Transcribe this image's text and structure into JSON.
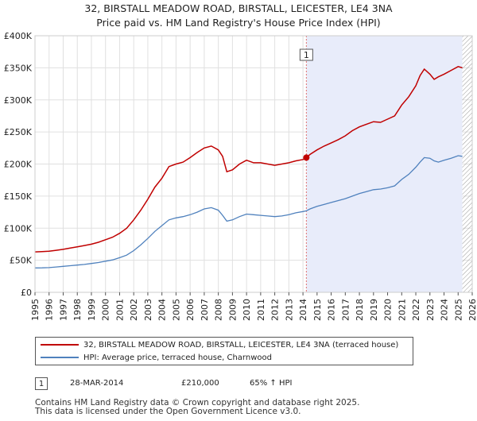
{
  "title": {
    "line1": "32, BIRSTALL MEADOW ROAD, BIRSTALL, LEICESTER, LE4 3NA",
    "line2": "Price paid vs. HM Land Registry's House Price Index (HPI)"
  },
  "colors": {
    "property": "#c00000",
    "hpi": "#4f81bd",
    "shade": "#e8ecfa",
    "marker_line": "#e07070",
    "grid": "#e0e0e0"
  },
  "legend": {
    "property_label": "32, BIRSTALL MEADOW ROAD, BIRSTALL, LEICESTER, LE4 3NA (terraced house)",
    "hpi_label": "HPI: Average price, terraced house, Charnwood"
  },
  "sale": {
    "badge": "1",
    "date": "28-MAR-2014",
    "price": "£210,000",
    "hpi_change": "65% ↑ HPI"
  },
  "footer": {
    "line1": "Contains HM Land Registry data © Crown copyright and database right 2025.",
    "line2": "This data is licensed under the Open Government Licence v3.0."
  },
  "chart_data": {
    "type": "line",
    "title": "Price paid vs. HM Land Registry's House Price Index (HPI)",
    "xlabel": "",
    "ylabel": "",
    "xlim": [
      1995,
      2026
    ],
    "ylim": [
      0,
      400000
    ],
    "grid": true,
    "x_ticks": [
      "1995",
      "1996",
      "1997",
      "1998",
      "1999",
      "2000",
      "2001",
      "2002",
      "2003",
      "2004",
      "2005",
      "2006",
      "2007",
      "2008",
      "2009",
      "2010",
      "2011",
      "2012",
      "2013",
      "2014",
      "2015",
      "2016",
      "2017",
      "2018",
      "2019",
      "2020",
      "2021",
      "2022",
      "2023",
      "2024",
      "2025",
      "2026"
    ],
    "y_ticks": [
      {
        "value": 0,
        "label": "£0"
      },
      {
        "value": 50000,
        "label": "£50K"
      },
      {
        "value": 100000,
        "label": "£100K"
      },
      {
        "value": 150000,
        "label": "£150K"
      },
      {
        "value": 200000,
        "label": "£200K"
      },
      {
        "value": 250000,
        "label": "£250K"
      },
      {
        "value": 300000,
        "label": "£300K"
      },
      {
        "value": 350000,
        "label": "£350K"
      },
      {
        "value": 400000,
        "label": "£400K"
      }
    ],
    "shaded_region": {
      "from": 2014.24,
      "to": 2025.3
    },
    "hatched_region_from": 2025.3,
    "annotation": {
      "label": "1",
      "x": 2014.24,
      "y": 210000
    },
    "series": [
      {
        "name": "32, BIRSTALL MEADOW ROAD, BIRSTALL, LEICESTER, LE4 3NA (terraced house)",
        "x": [
          1995,
          1995.5,
          1996,
          1996.5,
          1997,
          1997.5,
          1998,
          1998.5,
          1999,
          1999.5,
          2000,
          2000.5,
          2001,
          2001.5,
          2002,
          2002.5,
          2003,
          2003.5,
          2004,
          2004.5,
          2005,
          2005.5,
          2006,
          2006.5,
          2007,
          2007.5,
          2008,
          2008.3,
          2008.6,
          2009,
          2009.5,
          2010,
          2010.5,
          2011,
          2011.5,
          2012,
          2012.5,
          2013,
          2013.5,
          2014,
          2014.24,
          2014.5,
          2015,
          2015.5,
          2016,
          2016.5,
          2017,
          2017.5,
          2018,
          2018.5,
          2019,
          2019.5,
          2020,
          2020.5,
          2021,
          2021.5,
          2022,
          2022.3,
          2022.6,
          2023,
          2023.3,
          2023.6,
          2024,
          2024.5,
          2025,
          2025.3
        ],
        "values": [
          63000,
          63500,
          64000,
          65500,
          67000,
          69000,
          71000,
          73000,
          75000,
          78000,
          82000,
          86000,
          92000,
          100000,
          113000,
          128000,
          145000,
          164000,
          178000,
          196000,
          200000,
          203000,
          210000,
          218000,
          225000,
          228000,
          222000,
          212000,
          188000,
          191000,
          200000,
          206000,
          202000,
          202000,
          200000,
          198000,
          200000,
          202000,
          205000,
          207000,
          210000,
          215000,
          222000,
          228000,
          233000,
          238000,
          244000,
          252000,
          258000,
          262000,
          266000,
          265000,
          270000,
          275000,
          292000,
          305000,
          322000,
          338000,
          348000,
          340000,
          332000,
          336000,
          340000,
          346000,
          352000,
          350000
        ]
      },
      {
        "name": "HPI: Average price, terraced house, Charnwood",
        "x": [
          1995,
          1995.5,
          1996,
          1996.5,
          1997,
          1997.5,
          1998,
          1998.5,
          1999,
          1999.5,
          2000,
          2000.5,
          2001,
          2001.5,
          2002,
          2002.5,
          2003,
          2003.5,
          2004,
          2004.5,
          2005,
          2005.5,
          2006,
          2006.5,
          2007,
          2007.5,
          2008,
          2008.3,
          2008.6,
          2009,
          2009.5,
          2010,
          2010.5,
          2011,
          2011.5,
          2012,
          2012.5,
          2013,
          2013.5,
          2014,
          2014.24,
          2014.5,
          2015,
          2015.5,
          2016,
          2016.5,
          2017,
          2017.5,
          2018,
          2018.5,
          2019,
          2019.5,
          2020,
          2020.5,
          2021,
          2021.5,
          2022,
          2022.3,
          2022.6,
          2023,
          2023.3,
          2023.6,
          2024,
          2024.5,
          2025,
          2025.3
        ],
        "values": [
          38000,
          38200,
          38500,
          39500,
          40500,
          41500,
          42500,
          43500,
          45000,
          46500,
          48500,
          50500,
          54000,
          58000,
          65000,
          74000,
          84000,
          95000,
          104000,
          113000,
          116000,
          118000,
          121000,
          125000,
          130000,
          132000,
          128000,
          120000,
          111000,
          113000,
          118000,
          122000,
          121000,
          120000,
          119000,
          118000,
          119000,
          121000,
          124000,
          126000,
          127000,
          130000,
          134000,
          137000,
          140000,
          143000,
          146000,
          150000,
          154000,
          157000,
          160000,
          161000,
          163000,
          166000,
          176000,
          184000,
          195000,
          203000,
          210000,
          209000,
          205000,
          203000,
          206000,
          209000,
          213000,
          212000
        ]
      }
    ]
  }
}
